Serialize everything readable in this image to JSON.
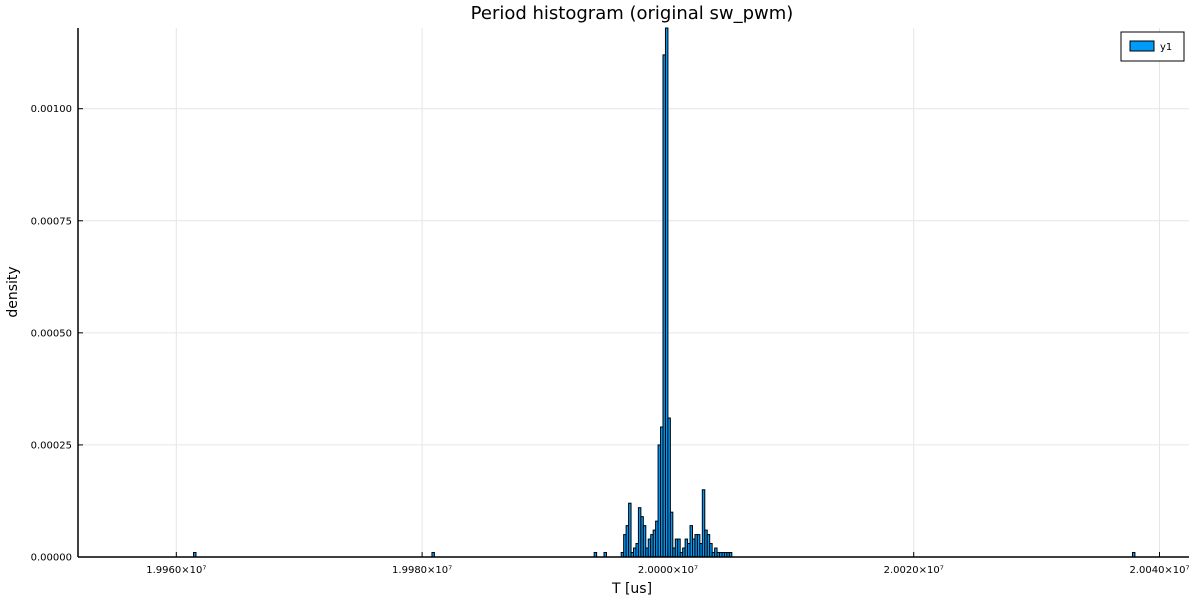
{
  "chart_data": {
    "type": "bar",
    "title": "Period histogram (original sw_pwm)",
    "xlabel": "T [us]",
    "ylabel": "density",
    "xlim": [
      19995200,
      20004240
    ],
    "ylim": [
      0,
      0.00118
    ],
    "grid": true,
    "legend_position": "top-right",
    "bar_color": "#009af9",
    "bin_width": 20,
    "x_ticks": [
      {
        "value": 19996000,
        "label": "1.9960×10⁷"
      },
      {
        "value": 19998000,
        "label": "1.9980×10⁷"
      },
      {
        "value": 20000000,
        "label": "2.0000×10⁷"
      },
      {
        "value": 20002000,
        "label": "2.0020×10⁷"
      },
      {
        "value": 20004000,
        "label": "2.0040×10⁷"
      }
    ],
    "y_ticks": [
      {
        "value": 0,
        "label": "0.00000"
      },
      {
        "value": 0.00025,
        "label": "0.00025"
      },
      {
        "value": 0.0005,
        "label": "0.00050"
      },
      {
        "value": 0.00075,
        "label": "0.00075"
      },
      {
        "value": 0.001,
        "label": "0.00100"
      }
    ],
    "series": [
      {
        "name": "y1",
        "x": [
          19996140,
          19998080,
          19999400,
          19999480,
          19999620,
          19999640,
          19999660,
          19999680,
          19999700,
          19999720,
          19999740,
          19999760,
          19999780,
          19999800,
          19999820,
          19999840,
          19999860,
          19999880,
          19999900,
          19999920,
          19999940,
          19999960,
          19999980,
          20000000,
          20000020,
          20000040,
          20000060,
          20000080,
          20000100,
          20000120,
          20000140,
          20000160,
          20000180,
          20000200,
          20000220,
          20000240,
          20000260,
          20000280,
          20000300,
          20000320,
          20000340,
          20000360,
          20000380,
          20000400,
          20000420,
          20000440,
          20000460,
          20000480,
          20000500,
          20003780
        ],
        "values": [
          1e-05,
          1e-05,
          1e-05,
          1e-05,
          1e-05,
          5e-05,
          7e-05,
          0.00012,
          1e-05,
          2e-05,
          3e-05,
          0.00011,
          9e-05,
          7e-05,
          2e-05,
          4e-05,
          5e-05,
          6e-05,
          8e-05,
          0.00025,
          0.00029,
          0.00112,
          0.00118,
          0.00031,
          0.0001,
          2e-05,
          4e-05,
          4e-05,
          1e-05,
          2e-05,
          4e-05,
          3e-05,
          7e-05,
          4e-05,
          5e-05,
          5e-05,
          3e-05,
          0.00015,
          6e-05,
          5e-05,
          3e-05,
          1e-05,
          2e-05,
          1e-05,
          1e-05,
          1e-05,
          1e-05,
          1e-05,
          1e-05,
          1e-05
        ]
      }
    ]
  }
}
